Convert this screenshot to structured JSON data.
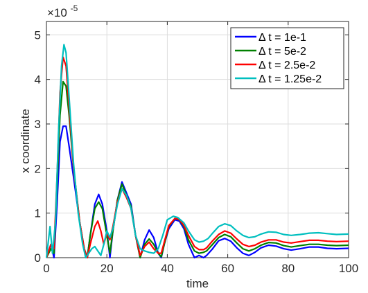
{
  "chart_data": {
    "type": "line",
    "xlabel": "time",
    "ylabel": "x coordinate",
    "xlim": [
      0,
      100
    ],
    "ylim": [
      0,
      5.3
    ],
    "y_scale_exponent_label": "×10",
    "y_scale_exponent_power": "-5",
    "x_ticks": [
      0,
      20,
      40,
      60,
      80,
      100
    ],
    "x_tick_labels": [
      "0",
      "20",
      "40",
      "60",
      "80",
      "100"
    ],
    "y_ticks": [
      0,
      1,
      2,
      3,
      4,
      5
    ],
    "y_tick_labels": [
      "0",
      "1",
      "2",
      "3",
      "4",
      "5"
    ],
    "grid": true,
    "legend_position": "top-right",
    "series": [
      {
        "name": "Δ t = 1e-1",
        "color": "#0000ff",
        "points": [
          [
            0,
            0
          ],
          [
            1.5,
            0.3
          ],
          [
            2.5,
            0
          ],
          [
            3.5,
            1.2
          ],
          [
            4.5,
            2.6
          ],
          [
            5.5,
            2.95
          ],
          [
            6.5,
            2.95
          ],
          [
            7.5,
            2.5
          ],
          [
            9,
            1.8
          ],
          [
            11,
            0.8
          ],
          [
            12.5,
            0.2
          ],
          [
            13.5,
            0
          ],
          [
            14.5,
            0.5
          ],
          [
            16,
            1.2
          ],
          [
            17.3,
            1.42
          ],
          [
            18.5,
            1.2
          ],
          [
            20,
            0.6
          ],
          [
            21,
            0
          ],
          [
            22,
            0.6
          ],
          [
            23.5,
            1.3
          ],
          [
            25,
            1.7
          ],
          [
            26.5,
            1.45
          ],
          [
            28,
            1.2
          ],
          [
            29.5,
            0.5
          ],
          [
            31,
            0
          ],
          [
            32.5,
            0.4
          ],
          [
            34,
            0.62
          ],
          [
            35.5,
            0.45
          ],
          [
            37,
            0.1
          ],
          [
            38,
            0
          ],
          [
            39,
            0.3
          ],
          [
            40.5,
            0.65
          ],
          [
            42.5,
            0.85
          ],
          [
            44,
            0.82
          ],
          [
            45.5,
            0.65
          ],
          [
            47,
            0.3
          ],
          [
            49,
            0
          ],
          [
            50.5,
            0.05
          ],
          [
            52,
            0
          ],
          [
            53,
            0.05
          ],
          [
            55,
            0.2
          ],
          [
            57,
            0.38
          ],
          [
            59,
            0.43
          ],
          [
            61,
            0.37
          ],
          [
            63,
            0.22
          ],
          [
            65,
            0.1
          ],
          [
            67,
            0.05
          ],
          [
            69,
            0.12
          ],
          [
            71,
            0.22
          ],
          [
            73.5,
            0.28
          ],
          [
            76,
            0.26
          ],
          [
            78.5,
            0.2
          ],
          [
            81,
            0.17
          ],
          [
            84,
            0.2
          ],
          [
            87,
            0.24
          ],
          [
            90,
            0.24
          ],
          [
            93,
            0.21
          ],
          [
            96,
            0.2
          ],
          [
            100,
            0.21
          ]
        ]
      },
      {
        "name": "Δ t = 5e-2",
        "color": "#008000",
        "points": [
          [
            0,
            0
          ],
          [
            1.5,
            0.2
          ],
          [
            2.5,
            0.1
          ],
          [
            3.5,
            1.6
          ],
          [
            4.5,
            3.2
          ],
          [
            5.5,
            3.95
          ],
          [
            6.5,
            3.85
          ],
          [
            7.5,
            3.2
          ],
          [
            9,
            2.0
          ],
          [
            11,
            0.8
          ],
          [
            12.5,
            0.2
          ],
          [
            13.5,
            0
          ],
          [
            14.5,
            0.5
          ],
          [
            16,
            1.1
          ],
          [
            17.3,
            1.25
          ],
          [
            18.5,
            1.1
          ],
          [
            20,
            0.5
          ],
          [
            21,
            0.1
          ],
          [
            22,
            0.6
          ],
          [
            23.5,
            1.3
          ],
          [
            25,
            1.65
          ],
          [
            26.5,
            1.4
          ],
          [
            28,
            1.15
          ],
          [
            29.5,
            0.5
          ],
          [
            31,
            0
          ],
          [
            32.5,
            0.3
          ],
          [
            34,
            0.42
          ],
          [
            35.5,
            0.3
          ],
          [
            37,
            0.1
          ],
          [
            38,
            0.02
          ],
          [
            39,
            0.3
          ],
          [
            40.5,
            0.7
          ],
          [
            42.5,
            0.88
          ],
          [
            44,
            0.85
          ],
          [
            45.5,
            0.7
          ],
          [
            47,
            0.4
          ],
          [
            49,
            0.15
          ],
          [
            50.5,
            0.1
          ],
          [
            52,
            0.12
          ],
          [
            53,
            0.15
          ],
          [
            55,
            0.3
          ],
          [
            57,
            0.45
          ],
          [
            59,
            0.52
          ],
          [
            61,
            0.47
          ],
          [
            63,
            0.33
          ],
          [
            65,
            0.2
          ],
          [
            67,
            0.15
          ],
          [
            69,
            0.2
          ],
          [
            71,
            0.28
          ],
          [
            73.5,
            0.34
          ],
          [
            76,
            0.33
          ],
          [
            78.5,
            0.27
          ],
          [
            81,
            0.24
          ],
          [
            84,
            0.27
          ],
          [
            87,
            0.3
          ],
          [
            90,
            0.3
          ],
          [
            93,
            0.28
          ],
          [
            96,
            0.27
          ],
          [
            100,
            0.28
          ]
        ]
      },
      {
        "name": "Δ t = 2.5e-2",
        "color": "#ff0000",
        "points": [
          [
            0,
            0
          ],
          [
            1.5,
            0.3
          ],
          [
            2.5,
            0.2
          ],
          [
            3.5,
            1.8
          ],
          [
            4.5,
            3.7
          ],
          [
            5.5,
            4.5
          ],
          [
            6.5,
            4.3
          ],
          [
            7.5,
            3.4
          ],
          [
            9,
            2.0
          ],
          [
            11,
            0.8
          ],
          [
            12.5,
            0.2
          ],
          [
            13.5,
            0
          ],
          [
            14.5,
            0.3
          ],
          [
            16,
            0.7
          ],
          [
            17,
            0.82
          ],
          [
            18,
            0.6
          ],
          [
            19,
            0.3
          ],
          [
            20,
            0.55
          ],
          [
            21,
            0.4
          ],
          [
            22,
            0.7
          ],
          [
            23.5,
            1.25
          ],
          [
            25,
            1.55
          ],
          [
            26.5,
            1.35
          ],
          [
            28,
            1.1
          ],
          [
            29.5,
            0.5
          ],
          [
            31,
            0.05
          ],
          [
            32.5,
            0.25
          ],
          [
            34,
            0.35
          ],
          [
            35.5,
            0.2
          ],
          [
            37,
            0.1
          ],
          [
            38,
            0.1
          ],
          [
            39,
            0.35
          ],
          [
            40.5,
            0.72
          ],
          [
            42.5,
            0.88
          ],
          [
            44,
            0.86
          ],
          [
            45.5,
            0.72
          ],
          [
            47,
            0.5
          ],
          [
            49,
            0.25
          ],
          [
            50.5,
            0.18
          ],
          [
            52,
            0.18
          ],
          [
            53,
            0.22
          ],
          [
            55,
            0.38
          ],
          [
            57,
            0.52
          ],
          [
            59,
            0.6
          ],
          [
            61,
            0.55
          ],
          [
            63,
            0.42
          ],
          [
            65,
            0.3
          ],
          [
            67,
            0.25
          ],
          [
            69,
            0.28
          ],
          [
            71,
            0.35
          ],
          [
            73.5,
            0.4
          ],
          [
            76,
            0.4
          ],
          [
            78.5,
            0.35
          ],
          [
            81,
            0.33
          ],
          [
            84,
            0.36
          ],
          [
            87,
            0.39
          ],
          [
            90,
            0.39
          ],
          [
            93,
            0.37
          ],
          [
            96,
            0.36
          ],
          [
            100,
            0.37
          ]
        ]
      },
      {
        "name": "Δ t = 1.25e-2",
        "color": "#00bfbf",
        "points": [
          [
            0,
            0
          ],
          [
            1.2,
            0.7
          ],
          [
            2,
            0.1
          ],
          [
            3,
            0.8
          ],
          [
            4,
            2.8
          ],
          [
            5,
            4.3
          ],
          [
            5.8,
            4.78
          ],
          [
            6.5,
            4.6
          ],
          [
            7.5,
            3.6
          ],
          [
            9,
            2.1
          ],
          [
            10.5,
            1.0
          ],
          [
            12,
            0.3
          ],
          [
            13,
            0
          ],
          [
            14,
            0.1
          ],
          [
            15,
            0.2
          ],
          [
            16,
            0.25
          ],
          [
            17,
            0.15
          ],
          [
            18,
            0.05
          ],
          [
            19,
            0.3
          ],
          [
            20,
            0.6
          ],
          [
            21,
            0.45
          ],
          [
            22,
            0.65
          ],
          [
            23.5,
            1.2
          ],
          [
            25,
            1.55
          ],
          [
            26.5,
            1.4
          ],
          [
            28,
            1.1
          ],
          [
            29.5,
            0.5
          ],
          [
            31,
            0.2
          ],
          [
            32.5,
            0.15
          ],
          [
            34,
            0.12
          ],
          [
            35.5,
            0.1
          ],
          [
            37,
            0.2
          ],
          [
            38.5,
            0.5
          ],
          [
            40,
            0.85
          ],
          [
            42,
            0.93
          ],
          [
            43.5,
            0.9
          ],
          [
            45.5,
            0.78
          ],
          [
            47,
            0.6
          ],
          [
            49,
            0.4
          ],
          [
            50.5,
            0.35
          ],
          [
            52,
            0.37
          ],
          [
            53.5,
            0.43
          ],
          [
            55,
            0.55
          ],
          [
            57,
            0.7
          ],
          [
            59,
            0.76
          ],
          [
            61,
            0.72
          ],
          [
            63,
            0.6
          ],
          [
            65,
            0.5
          ],
          [
            67,
            0.45
          ],
          [
            69,
            0.47
          ],
          [
            71,
            0.53
          ],
          [
            73.5,
            0.58
          ],
          [
            76,
            0.57
          ],
          [
            78.5,
            0.52
          ],
          [
            81,
            0.5
          ],
          [
            84,
            0.52
          ],
          [
            87,
            0.55
          ],
          [
            90,
            0.56
          ],
          [
            93,
            0.54
          ],
          [
            96,
            0.52
          ],
          [
            100,
            0.53
          ]
        ]
      }
    ]
  }
}
